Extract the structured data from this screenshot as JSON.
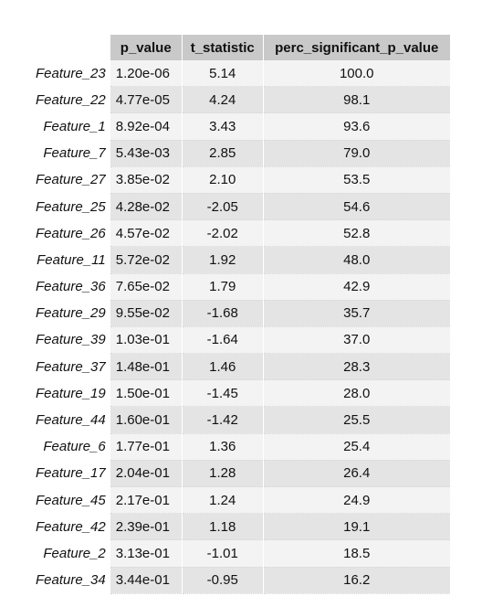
{
  "chart_data": {
    "type": "table",
    "columns": [
      "p_value",
      "t_statistic",
      "perc_significant_p_value"
    ],
    "rows": [
      {
        "feature": "Feature_23",
        "p_value": "1.20e-06",
        "t_statistic": "5.14",
        "perc_significant_p_value": "100.0"
      },
      {
        "feature": "Feature_22",
        "p_value": "4.77e-05",
        "t_statistic": "4.24",
        "perc_significant_p_value": "98.1"
      },
      {
        "feature": "Feature_1",
        "p_value": "8.92e-04",
        "t_statistic": "3.43",
        "perc_significant_p_value": "93.6"
      },
      {
        "feature": "Feature_7",
        "p_value": "5.43e-03",
        "t_statistic": "2.85",
        "perc_significant_p_value": "79.0"
      },
      {
        "feature": "Feature_27",
        "p_value": "3.85e-02",
        "t_statistic": "2.10",
        "perc_significant_p_value": "53.5"
      },
      {
        "feature": "Feature_25",
        "p_value": "4.28e-02",
        "t_statistic": "-2.05",
        "perc_significant_p_value": "54.6"
      },
      {
        "feature": "Feature_26",
        "p_value": "4.57e-02",
        "t_statistic": "-2.02",
        "perc_significant_p_value": "52.8"
      },
      {
        "feature": "Feature_11",
        "p_value": "5.72e-02",
        "t_statistic": "1.92",
        "perc_significant_p_value": "48.0"
      },
      {
        "feature": "Feature_36",
        "p_value": "7.65e-02",
        "t_statistic": "1.79",
        "perc_significant_p_value": "42.9"
      },
      {
        "feature": "Feature_29",
        "p_value": "9.55e-02",
        "t_statistic": "-1.68",
        "perc_significant_p_value": "35.7"
      },
      {
        "feature": "Feature_39",
        "p_value": "1.03e-01",
        "t_statistic": "-1.64",
        "perc_significant_p_value": "37.0"
      },
      {
        "feature": "Feature_37",
        "p_value": "1.48e-01",
        "t_statistic": "1.46",
        "perc_significant_p_value": "28.3"
      },
      {
        "feature": "Feature_19",
        "p_value": "1.50e-01",
        "t_statistic": "-1.45",
        "perc_significant_p_value": "28.0"
      },
      {
        "feature": "Feature_44",
        "p_value": "1.60e-01",
        "t_statistic": "-1.42",
        "perc_significant_p_value": "25.5"
      },
      {
        "feature": "Feature_6",
        "p_value": "1.77e-01",
        "t_statistic": "1.36",
        "perc_significant_p_value": "25.4"
      },
      {
        "feature": "Feature_17",
        "p_value": "2.04e-01",
        "t_statistic": "1.28",
        "perc_significant_p_value": "26.4"
      },
      {
        "feature": "Feature_45",
        "p_value": "2.17e-01",
        "t_statistic": "1.24",
        "perc_significant_p_value": "24.9"
      },
      {
        "feature": "Feature_42",
        "p_value": "2.39e-01",
        "t_statistic": "1.18",
        "perc_significant_p_value": "19.1"
      },
      {
        "feature": "Feature_2",
        "p_value": "3.13e-01",
        "t_statistic": "-1.01",
        "perc_significant_p_value": "18.5"
      },
      {
        "feature": "Feature_34",
        "p_value": "3.44e-01",
        "t_statistic": "-0.95",
        "perc_significant_p_value": "16.2"
      }
    ],
    "colors": {
      "header_bg": "#c9c9c9",
      "row_light": "#f3f3f3",
      "row_dark": "#e4e4e4"
    }
  }
}
